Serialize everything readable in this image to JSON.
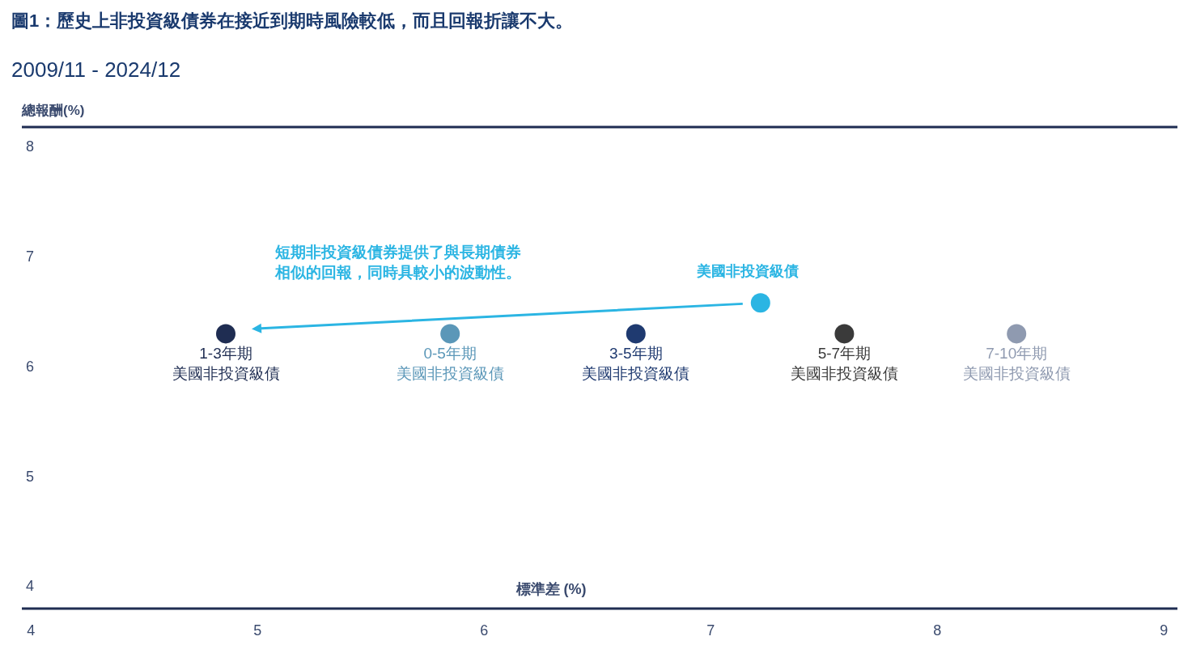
{
  "chart_data": {
    "type": "scatter",
    "title": "圖1：歷史上非投資級債券在接近到期時風險較低，而且回報折讓不大。",
    "subtitle": "2009/11 - 2024/12",
    "xlabel": "標準差 (%)",
    "ylabel": "總報酬(%)",
    "xlim": [
      3.96,
      9.06
    ],
    "xticks": [
      4,
      5,
      6,
      7,
      8,
      9
    ],
    "ylim": [
      3.79,
      8.17
    ],
    "yticks": [
      4,
      5,
      6,
      7,
      8
    ],
    "grid": false,
    "marker": "circle",
    "series": [
      {
        "name": "1-3年期美國非投資級債",
        "color": "#1f2d52",
        "x": [
          4.86
        ],
        "values": [
          6.29
        ]
      },
      {
        "name": "0-5年期美國非投資級債",
        "color": "#5b97b8",
        "x": [
          5.85
        ],
        "values": [
          6.29
        ]
      },
      {
        "name": "3-5年期美國非投資級債",
        "color": "#1f3a70",
        "x": [
          6.67
        ],
        "values": [
          6.29
        ]
      },
      {
        "name": "5-7年期美國非投資級債",
        "color": "#3a3a3a",
        "x": [
          7.59
        ],
        "values": [
          6.29
        ]
      },
      {
        "name": "7-10年期美國非投資級債",
        "color": "#8f9ab0",
        "x": [
          8.35
        ],
        "values": [
          6.29
        ]
      },
      {
        "name": "美國非投資級債",
        "color": "#2bb5e3",
        "x": [
          7.22
        ],
        "values": [
          6.57
        ]
      }
    ],
    "annotations": [
      "短期非投資級債券提供了與長期債券相似的回報，同時具較小的波動性。"
    ]
  }
}
